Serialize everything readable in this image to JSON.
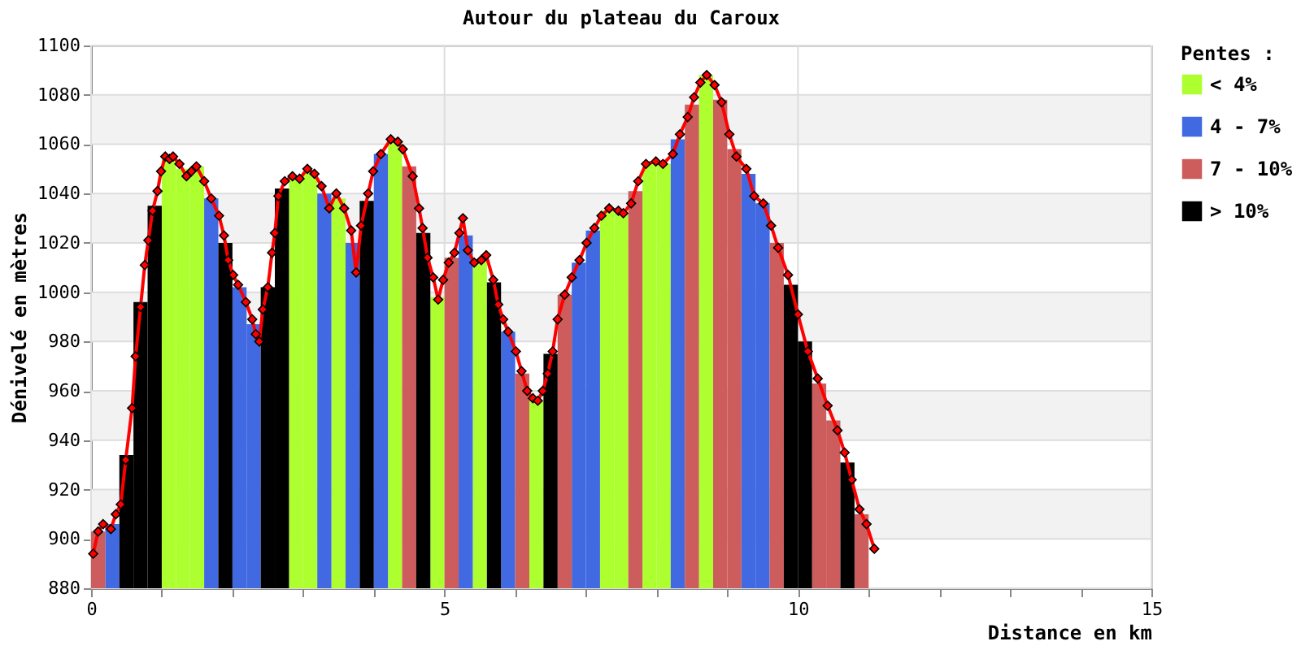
{
  "chart_data": {
    "type": "bar",
    "title": "Autour du plateau du Caroux",
    "xlabel": "Distance en km",
    "ylabel": "Dénivelé en mètres",
    "legend_title": "Pentes :",
    "legend": "right",
    "grid": true,
    "xlim": [
      0,
      15
    ],
    "ylim": [
      880,
      1100
    ],
    "xticks": [
      0,
      {
        "value": 1,
        "label": null
      },
      {
        "value": 2,
        "label": null
      },
      {
        "value": 3,
        "label": null
      },
      {
        "value": 4,
        "label": null
      },
      5,
      {
        "value": 6,
        "label": null
      },
      {
        "value": 7,
        "label": null
      },
      {
        "value": 8,
        "label": null
      },
      {
        "value": 9,
        "label": null
      },
      10,
      {
        "value": 11,
        "label": null
      },
      {
        "value": 12,
        "label": null
      },
      {
        "value": 13,
        "label": null
      },
      {
        "value": 14,
        "label": null
      },
      15
    ],
    "yticks": [
      880,
      900,
      920,
      940,
      960,
      980,
      1000,
      1020,
      1040,
      1060,
      1080,
      1100
    ],
    "bands": [
      {
        "axis": "y",
        "from": 900,
        "to": 920,
        "color": "#f2f2f2"
      },
      {
        "axis": "y",
        "from": 940,
        "to": 960,
        "color": "#f2f2f2"
      },
      {
        "axis": "y",
        "from": 980,
        "to": 1000,
        "color": "#f2f2f2"
      },
      {
        "axis": "y",
        "from": 1020,
        "to": 1040,
        "color": "#f2f2f2"
      },
      {
        "axis": "y",
        "from": 1060,
        "to": 1080,
        "color": "#f2f2f2"
      }
    ],
    "series": [
      {
        "name": "< 4%",
        "color": "#adff2f",
        "x": [
          1.1,
          1.3,
          1.5,
          2.9,
          3.1,
          3.5,
          4.3,
          4.9,
          5.5,
          6.3,
          7.3,
          7.5,
          7.9,
          8.1,
          8.7
        ],
        "values": [
          1054,
          1050,
          1051,
          1047,
          1049,
          1038,
          1061,
          998,
          1013,
          956,
          1033,
          1032,
          1052,
          1052,
          1088
        ]
      },
      {
        "name": "4 - 7%",
        "color": "#4169e1",
        "x": [
          0.3,
          1.7,
          2.1,
          2.3,
          3.3,
          3.7,
          4.1,
          5.3,
          5.9,
          6.9,
          7.1,
          8.3,
          9.3,
          9.5
        ],
        "values": [
          906,
          1038,
          1002,
          987,
          1040,
          1020,
          1056,
          1023,
          984,
          1012,
          1025,
          1062,
          1048,
          1036
        ]
      },
      {
        "name": "7 - 10%",
        "color": "#cd5c5c",
        "x": [
          0.1,
          4.5,
          5.1,
          6.1,
          6.7,
          7.7,
          8.5,
          8.9,
          9.1,
          9.7,
          10.3,
          10.5,
          10.9
        ],
        "values": [
          903,
          1051,
          1014,
          967,
          999,
          1041,
          1076,
          1078,
          1058,
          1020,
          963,
          948,
          910
        ]
      },
      {
        "name": "> 10%",
        "color": "#000000",
        "x": [
          0.5,
          0.7,
          0.9,
          1.9,
          2.5,
          2.7,
          3.9,
          4.7,
          5.7,
          6.5,
          9.9,
          10.1,
          10.7
        ],
        "values": [
          934,
          996,
          1035,
          1020,
          1002,
          1042,
          1037,
          1024,
          1004,
          975,
          1003,
          980,
          931
        ]
      },
      {
        "type": "line",
        "color": "#ff0000",
        "marker": "diamond",
        "x": [
          0.03,
          0.1,
          0.17,
          0.28,
          0.35,
          0.42,
          0.49,
          0.58,
          0.63,
          0.7,
          0.76,
          0.81,
          0.87,
          0.94,
          0.99,
          1.05,
          1.11,
          1.16,
          1.25,
          1.35,
          1.42,
          1.49,
          1.6,
          1.7,
          1.81,
          1.88,
          1.94,
          2.01,
          2.08,
          2.19,
          2.28,
          2.33,
          2.38,
          2.43,
          2.5,
          2.56,
          2.6,
          2.65,
          2.74,
          2.85,
          2.95,
          3.06,
          3.16,
          3.26,
          3.37,
          3.47,
          3.58,
          3.68,
          3.75,
          3.82,
          3.92,
          3.99,
          4.1,
          4.24,
          4.34,
          4.41,
          4.55,
          4.64,
          4.69,
          4.76,
          4.84,
          4.91,
          4.98,
          5.06,
          5.14,
          5.21,
          5.26,
          5.33,
          5.42,
          5.52,
          5.59,
          5.69,
          5.76,
          5.83,
          5.9,
          6.01,
          6.09,
          6.17,
          6.25,
          6.32,
          6.39,
          6.46,
          6.53,
          6.6,
          6.7,
          6.8,
          6.91,
          7.01,
          7.12,
          7.22,
          7.33,
          7.46,
          7.53,
          7.64,
          7.74,
          7.85,
          7.99,
          8.09,
          8.23,
          8.33,
          8.44,
          8.53,
          8.62,
          8.71,
          8.82,
          8.92,
          9.03,
          9.13,
          9.27,
          9.38,
          9.51,
          9.62,
          9.72,
          9.86,
          10.0,
          10.14,
          10.28,
          10.42,
          10.56,
          10.66,
          10.76,
          10.87,
          10.97,
          11.08
        ],
        "values": [
          894,
          903,
          906,
          904,
          910,
          914,
          932,
          953,
          974,
          994,
          1011,
          1021,
          1033,
          1041,
          1049,
          1055,
          1054,
          1055,
          1052,
          1047,
          1049,
          1051,
          1045,
          1038,
          1031,
          1023,
          1013,
          1007,
          1003,
          996,
          989,
          983,
          980,
          993,
          1002,
          1016,
          1024,
          1039,
          1045,
          1047,
          1046,
          1050,
          1048,
          1043,
          1034,
          1040,
          1034,
          1025,
          1008,
          1027,
          1040,
          1049,
          1056,
          1062,
          1061,
          1058,
          1047,
          1034,
          1026,
          1014,
          1006,
          997,
          1005,
          1012,
          1016,
          1024,
          1030,
          1017,
          1012,
          1013,
          1015,
          1005,
          995,
          989,
          984,
          976,
          968,
          960,
          957,
          956,
          960,
          967,
          976,
          989,
          999,
          1006,
          1013,
          1020,
          1026,
          1031,
          1034,
          1033,
          1032,
          1036,
          1045,
          1052,
          1053,
          1052,
          1056,
          1064,
          1071,
          1079,
          1085,
          1088,
          1084,
          1077,
          1064,
          1055,
          1050,
          1039,
          1036,
          1027,
          1018,
          1007,
          991,
          976,
          965,
          954,
          944,
          935,
          924,
          912,
          906,
          896
        ]
      }
    ]
  }
}
